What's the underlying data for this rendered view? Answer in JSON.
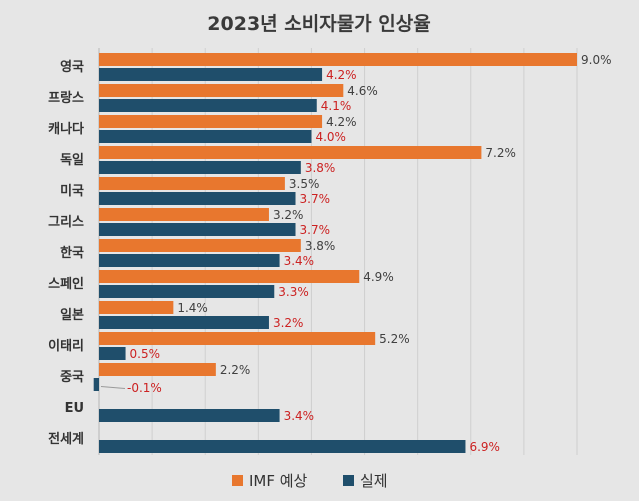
{
  "chart_data": {
    "type": "bar",
    "orientation": "horizontal",
    "title": "2023년 소비자물가 인상율",
    "categories": [
      "영국",
      "프랑스",
      "캐나다",
      "독일",
      "미국",
      "그리스",
      "한국",
      "스페인",
      "일본",
      "이태리",
      "중국",
      "EU",
      "전세계"
    ],
    "series": [
      {
        "name": "IMF 예상",
        "color": "#e8772e",
        "label_color": "#404040",
        "values": [
          9.0,
          4.6,
          4.2,
          7.2,
          3.5,
          3.2,
          3.8,
          4.9,
          1.4,
          5.2,
          2.2,
          null,
          null
        ],
        "labels": [
          "9.0%",
          "4.6%",
          "4.2%",
          "7.2%",
          "3.5%",
          "3.2%",
          "3.8%",
          "4.9%",
          "1.4%",
          "5.2%",
          "2.2%",
          "",
          ""
        ]
      },
      {
        "name": "실제",
        "color": "#1f4e6b",
        "label_color": "#cc2222",
        "values": [
          4.2,
          4.1,
          4.0,
          3.8,
          3.7,
          3.7,
          3.4,
          3.3,
          3.2,
          0.5,
          -0.1,
          3.4,
          6.9
        ],
        "labels": [
          "4.2%",
          "4.1%",
          "4.0%",
          "3.8%",
          "3.7%",
          "3.7%",
          "3.4%",
          "3.3%",
          "3.2%",
          "0.5%",
          "-0.1%",
          "3.4%",
          "6.9%"
        ]
      }
    ],
    "xlim": [
      0,
      9.0
    ],
    "grid": true,
    "legend_position": "bottom"
  }
}
